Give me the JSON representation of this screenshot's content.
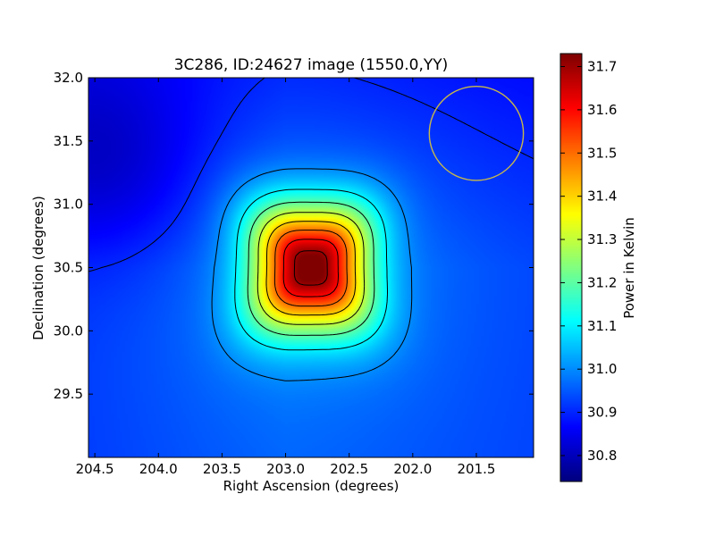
{
  "chart_data": {
    "type": "heatmap",
    "title": "3C286, ID:24627 image (1550.0,YY)",
    "xlabel": "Right Ascension (degrees)",
    "ylabel": "Declination (degrees)",
    "colorbar_label": "Power in Kelvin",
    "xlim": [
      204.55,
      201.05
    ],
    "ylim": [
      29.0,
      32.0
    ],
    "x_ticks": [
      "204.5",
      "204.0",
      "203.5",
      "203.0",
      "202.5",
      "202.0",
      "201.5"
    ],
    "x_tick_values": [
      204.5,
      204.0,
      203.5,
      203.0,
      202.5,
      202.0,
      201.5
    ],
    "y_ticks": [
      "29.5",
      "30.0",
      "30.5",
      "31.0",
      "31.5",
      "32.0"
    ],
    "y_tick_values": [
      29.5,
      30.0,
      30.5,
      31.0,
      31.5,
      32.0
    ],
    "colorbar_range": [
      30.74,
      31.73
    ],
    "colorbar_ticks": [
      "30.8",
      "30.9",
      "31.0",
      "31.1",
      "31.2",
      "31.3",
      "31.4",
      "31.5",
      "31.6",
      "31.7"
    ],
    "colorbar_tick_values": [
      30.8,
      30.9,
      31.0,
      31.1,
      31.2,
      31.3,
      31.4,
      31.5,
      31.6,
      31.7
    ],
    "colormap": "jet",
    "peak": {
      "ra": 202.8,
      "dec": 30.5,
      "value": 31.72
    },
    "background_level": 30.95,
    "contour_levels": [
      30.9,
      31.0,
      31.1,
      31.2,
      31.3,
      31.4,
      31.5,
      31.6,
      31.7
    ],
    "beam_circle": {
      "ra": 201.5,
      "dec": 31.56,
      "radius_deg": 0.37,
      "color": "#c8b84a"
    }
  }
}
